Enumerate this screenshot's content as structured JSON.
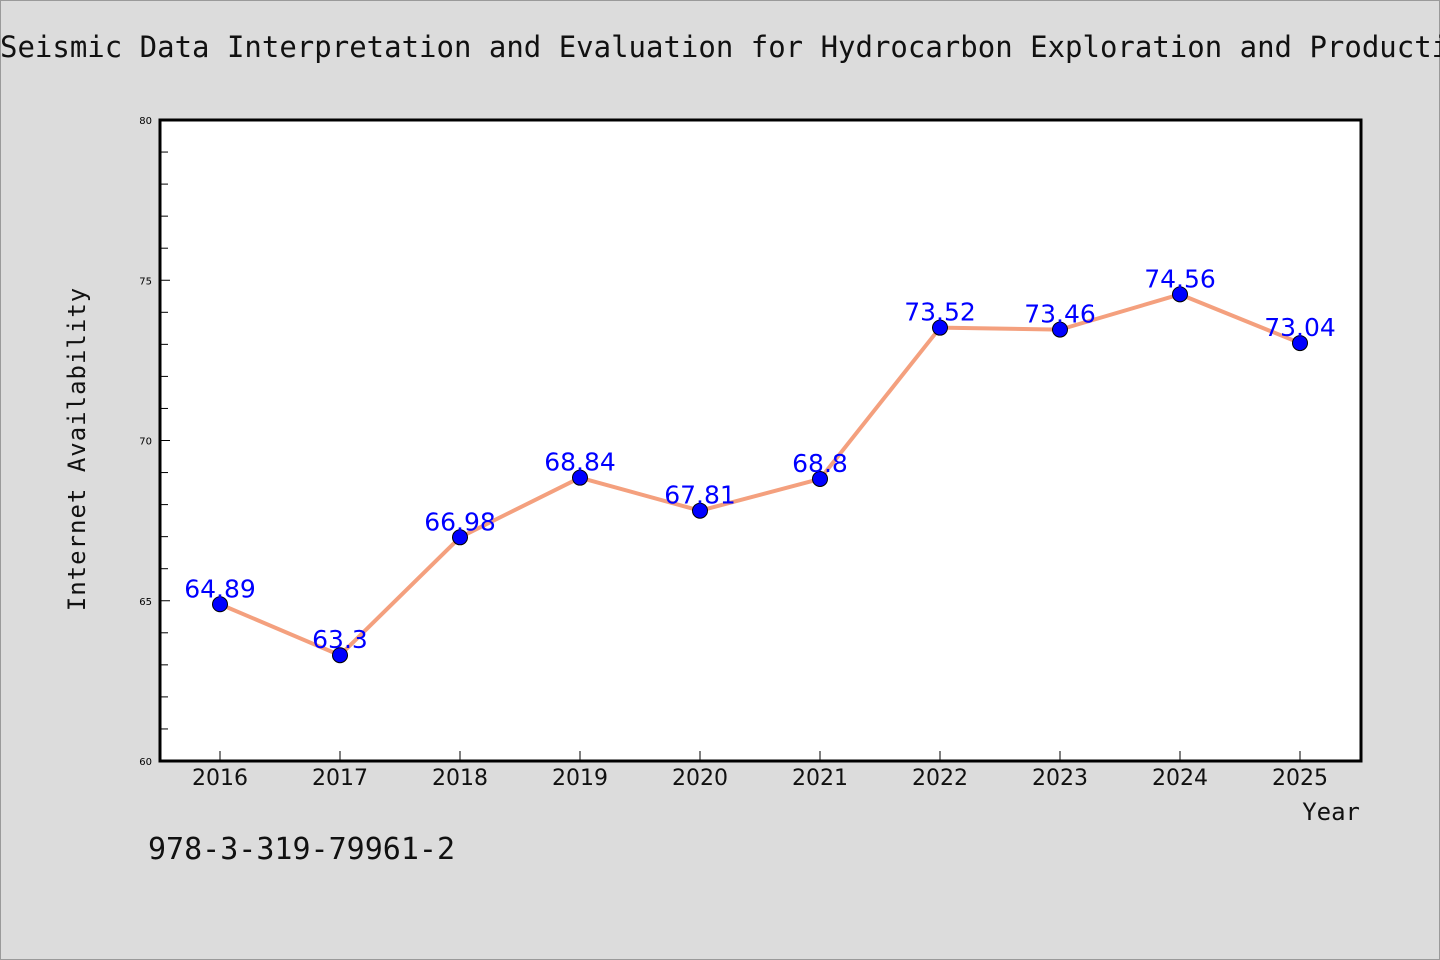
{
  "chart_data": {
    "type": "line",
    "title": "Seismic Data Interpretation and Evaluation for Hydrocarbon Exploration and Production",
    "xlabel": "Year",
    "ylabel": "Internet Availability",
    "categories": [
      "2016",
      "2017",
      "2018",
      "2019",
      "2020",
      "2021",
      "2022",
      "2023",
      "2024",
      "2025"
    ],
    "values": [
      64.89,
      63.3,
      66.98,
      68.84,
      67.81,
      68.8,
      73.52,
      73.46,
      74.56,
      73.04
    ],
    "data_labels": [
      "64.89",
      "63.3",
      "66.98",
      "68.84",
      "67.81",
      "68.8",
      "73.52",
      "73.46",
      "74.56",
      "73.04"
    ],
    "ylim": [
      60,
      80
    ],
    "yticks": [
      "60",
      "65",
      "70",
      "75",
      "80"
    ],
    "grid": false,
    "line_color": "#f4a07e",
    "marker_color": "#0000ff",
    "label_color": "#0000ff"
  },
  "footer": {
    "code": "978-3-319-79961-2"
  }
}
